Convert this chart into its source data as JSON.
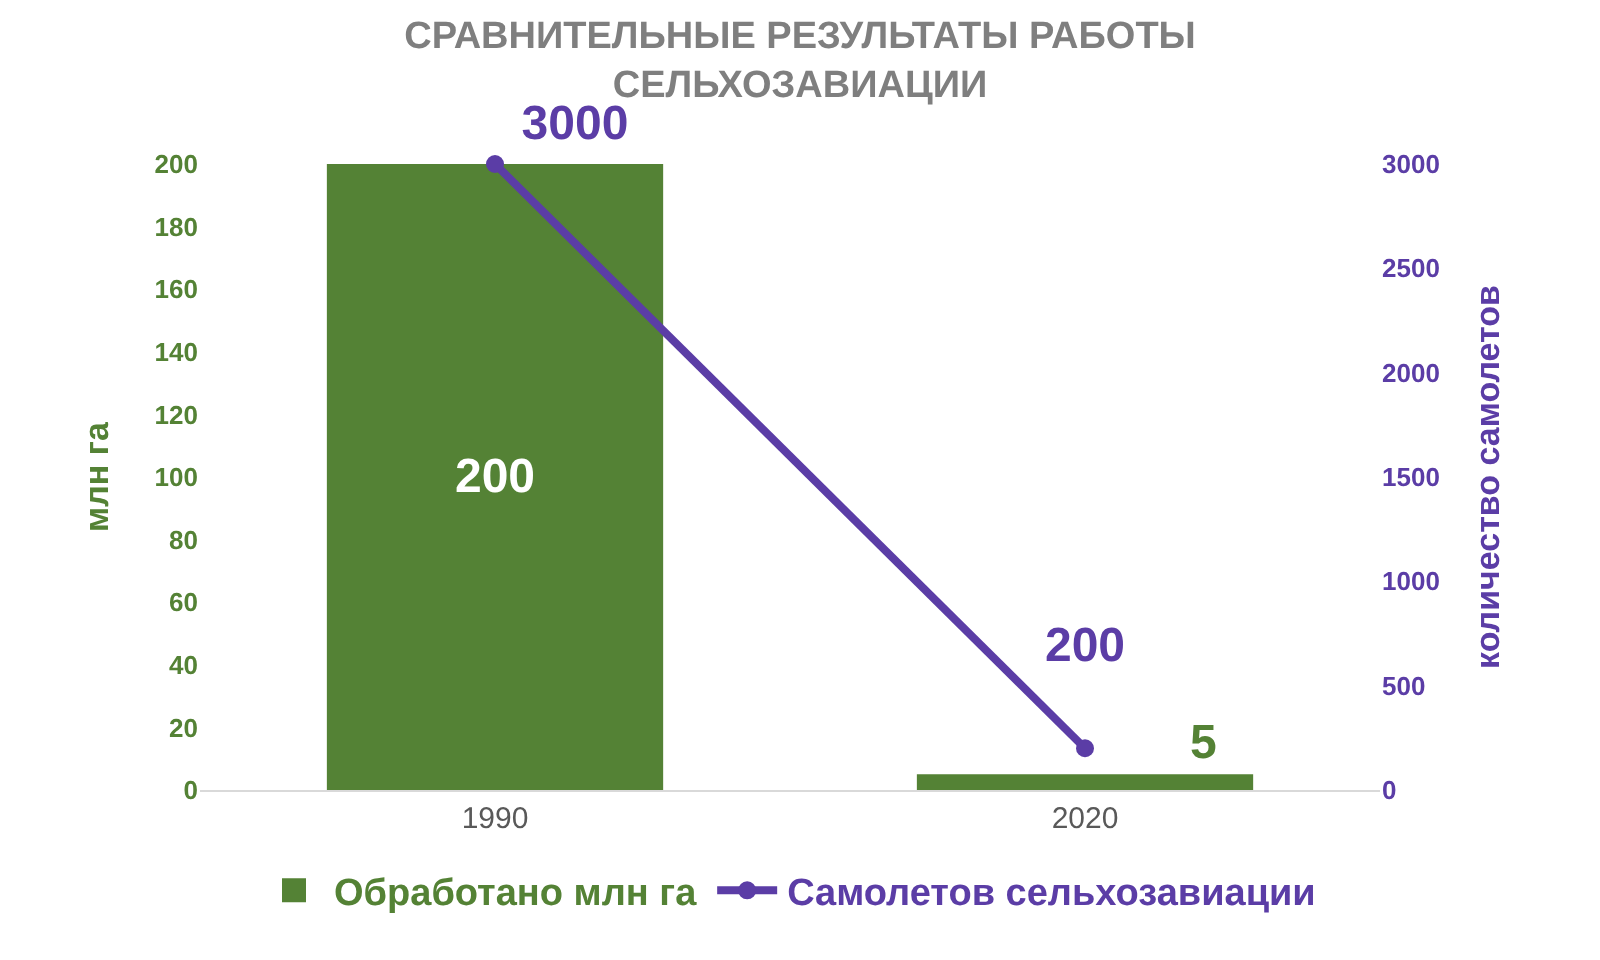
{
  "chart_data": {
    "type": "bar",
    "title": "СРАВНИТЕЛЬНЫЕ РЕЗУЛЬТАТЫ РАБОТЫ СЕЛЬХОЗАВИАЦИИ",
    "ylabel": "млн га",
    "y2label": "количество самолетов",
    "categories": [
      "1990",
      "2020"
    ],
    "series": [
      {
        "name": "Обработано млн га",
        "color": "#548235",
        "values": [
          200,
          5
        ]
      },
      {
        "name": "Самолетов сельхозавиации",
        "type": "line",
        "axis": "y2",
        "color": "#5b3da6",
        "values": [
          3000,
          200
        ]
      }
    ],
    "ylim": [
      0,
      200
    ],
    "yticks": [
      0,
      20,
      40,
      60,
      80,
      100,
      120,
      140,
      160,
      180,
      200
    ],
    "y2lim": [
      0,
      3000
    ],
    "y2ticks": [
      0,
      500,
      1000,
      1500,
      2000,
      2500,
      3000
    ],
    "data_labels": true,
    "legend": "bottom",
    "marker": "circle",
    "line_style": "solid",
    "grid": false
  }
}
